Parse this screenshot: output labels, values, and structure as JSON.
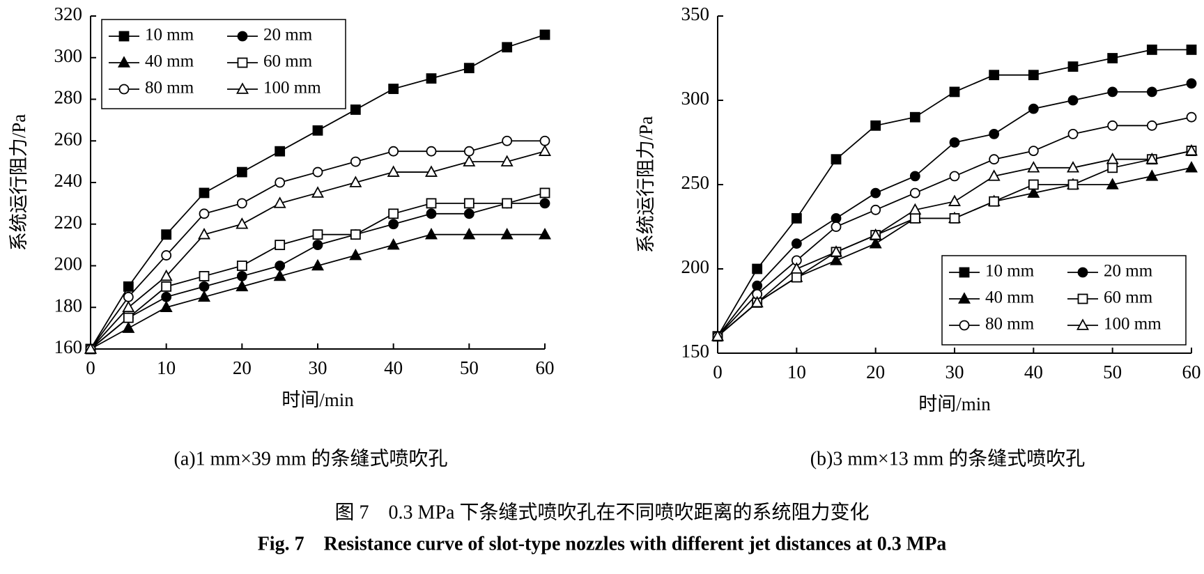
{
  "chart_data": [
    {
      "type": "line",
      "caption": "(a)1 mm×39 mm 的条缝式喷吹孔",
      "x_label": "时间/min",
      "y_label": "系统运行阻力/Pa",
      "x": [
        0,
        5,
        10,
        15,
        20,
        25,
        30,
        35,
        40,
        45,
        50,
        55,
        60
      ],
      "xlim": [
        0,
        60
      ],
      "xticks": [
        0,
        10,
        20,
        30,
        40,
        50,
        60
      ],
      "ylim": [
        160,
        320
      ],
      "yticks": [
        160,
        180,
        200,
        220,
        240,
        260,
        280,
        300,
        320
      ],
      "legend": "upper left",
      "series": [
        {
          "name": "10 mm",
          "marker": "square",
          "filled": true,
          "color": "#000",
          "values": [
            160,
            190,
            215,
            235,
            245,
            255,
            265,
            275,
            285,
            290,
            295,
            305,
            311
          ]
        },
        {
          "name": "20 mm",
          "marker": "circle",
          "filled": true,
          "color": "#000",
          "values": [
            160,
            175,
            185,
            190,
            195,
            200,
            210,
            215,
            220,
            225,
            225,
            230,
            230
          ]
        },
        {
          "name": "40 mm",
          "marker": "triangle",
          "filled": true,
          "color": "#000",
          "values": [
            160,
            170,
            180,
            185,
            190,
            195,
            200,
            205,
            210,
            215,
            215,
            215,
            215
          ]
        },
        {
          "name": "60 mm",
          "marker": "square",
          "filled": false,
          "color": "#000",
          "values": [
            160,
            175,
            190,
            195,
            200,
            210,
            215,
            215,
            225,
            230,
            230,
            230,
            235
          ]
        },
        {
          "name": "80 mm",
          "marker": "circle",
          "filled": false,
          "color": "#000",
          "values": [
            160,
            185,
            205,
            225,
            230,
            240,
            245,
            250,
            255,
            255,
            255,
            260,
            260
          ]
        },
        {
          "name": "100 mm",
          "marker": "triangle",
          "filled": false,
          "color": "#000",
          "values": [
            160,
            180,
            195,
            215,
            220,
            230,
            235,
            240,
            245,
            245,
            250,
            250,
            255
          ]
        }
      ]
    },
    {
      "type": "line",
      "caption": "(b)3 mm×13 mm 的条缝式喷吹孔",
      "x_label": "时间/min",
      "y_label": "系统运行阻力/Pa",
      "x": [
        0,
        5,
        10,
        15,
        20,
        25,
        30,
        35,
        40,
        45,
        50,
        55,
        60
      ],
      "xlim": [
        0,
        60
      ],
      "xticks": [
        0,
        10,
        20,
        30,
        40,
        50,
        60
      ],
      "ylim": [
        150,
        350
      ],
      "yticks": [
        150,
        200,
        250,
        300,
        350
      ],
      "legend": "lower right",
      "series": [
        {
          "name": "10 mm",
          "marker": "square",
          "filled": true,
          "color": "#000",
          "values": [
            160,
            200,
            230,
            265,
            285,
            290,
            305,
            315,
            315,
            320,
            325,
            330,
            330
          ]
        },
        {
          "name": "20 mm",
          "marker": "circle",
          "filled": true,
          "color": "#000",
          "values": [
            160,
            190,
            215,
            230,
            245,
            255,
            275,
            280,
            295,
            300,
            305,
            305,
            310
          ]
        },
        {
          "name": "40 mm",
          "marker": "triangle",
          "filled": true,
          "color": "#000",
          "values": [
            160,
            180,
            195,
            205,
            215,
            230,
            230,
            240,
            245,
            250,
            250,
            255,
            260
          ]
        },
        {
          "name": "60 mm",
          "marker": "square",
          "filled": false,
          "color": "#000",
          "values": [
            160,
            180,
            195,
            210,
            220,
            230,
            230,
            240,
            250,
            250,
            260,
            265,
            270
          ]
        },
        {
          "name": "80 mm",
          "marker": "circle",
          "filled": false,
          "color": "#000",
          "values": [
            160,
            185,
            205,
            225,
            235,
            245,
            255,
            265,
            270,
            280,
            285,
            285,
            290
          ]
        },
        {
          "name": "100 mm",
          "marker": "triangle",
          "filled": false,
          "color": "#000",
          "values": [
            160,
            180,
            200,
            210,
            220,
            235,
            240,
            255,
            260,
            260,
            265,
            265,
            270
          ]
        }
      ]
    }
  ],
  "figure": {
    "caption_cn": "图 7　0.3 MPa 下条缝式喷吹孔在不同喷吹距离的系统阻力变化",
    "caption_en": "Fig. 7　Resistance curve of slot-type nozzles with different jet distances at 0.3 MPa"
  }
}
